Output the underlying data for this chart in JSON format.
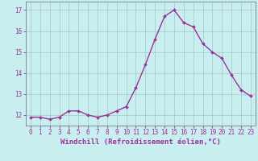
{
  "hours": [
    0,
    1,
    2,
    3,
    4,
    5,
    6,
    7,
    8,
    9,
    10,
    11,
    12,
    13,
    14,
    15,
    16,
    17,
    18,
    19,
    20,
    21,
    22,
    23
  ],
  "values": [
    11.9,
    11.9,
    11.8,
    11.9,
    12.2,
    12.2,
    12.0,
    11.9,
    12.0,
    12.2,
    12.4,
    13.3,
    14.4,
    15.6,
    16.7,
    17.0,
    16.4,
    16.2,
    15.4,
    15.0,
    14.7,
    13.9,
    13.2,
    12.9
  ],
  "line_color": "#993399",
  "marker": "D",
  "marker_size": 2.0,
  "background_color": "#c8eef0",
  "grid_color": "#aacccc",
  "xlabel": "Windchill (Refroidissement éolien,°C)",
  "xlabel_fontsize": 6.5,
  "ylim": [
    11.5,
    17.4
  ],
  "yticks": [
    12,
    13,
    14,
    15,
    16,
    17
  ],
  "xticks": [
    0,
    1,
    2,
    3,
    4,
    5,
    6,
    7,
    8,
    9,
    10,
    11,
    12,
    13,
    14,
    15,
    16,
    17,
    18,
    19,
    20,
    21,
    22,
    23
  ],
  "tick_fontsize": 5.5,
  "line_width": 1.0,
  "spine_color": "#888899"
}
